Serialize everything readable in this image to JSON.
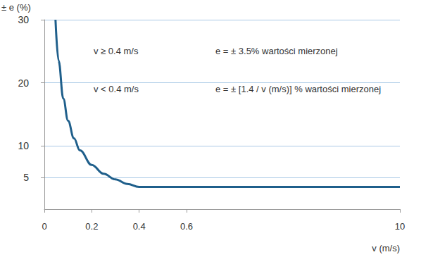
{
  "chart_data": {
    "type": "line",
    "y_label": "± e (%)",
    "x_label": "v (m/s)",
    "annotations": [
      [
        "v ≥ 0.4 m/s",
        "e = ± 3.5% wartości mierzonej"
      ],
      [
        "v < 0.4 m/s",
        "e = ± [1.4 / v (m/s)] % wartości mierzonej"
      ]
    ],
    "x": [
      0.047,
      0.06,
      0.08,
      0.1,
      0.125,
      0.15,
      0.2,
      0.25,
      0.3,
      0.35,
      0.4,
      10
    ],
    "values": [
      30,
      23.5,
      17.5,
      14,
      11.2,
      9.3,
      7,
      5.6,
      4.7,
      4,
      3.5,
      3.5
    ],
    "color": "#1f5f8b",
    "xlim": [
      0,
      10
    ],
    "xticks": [
      0,
      0.2,
      0.4,
      0.6,
      10
    ],
    "ylim": [
      0,
      30
    ],
    "yticks": [
      5,
      10,
      20,
      30
    ],
    "grid": true
  }
}
